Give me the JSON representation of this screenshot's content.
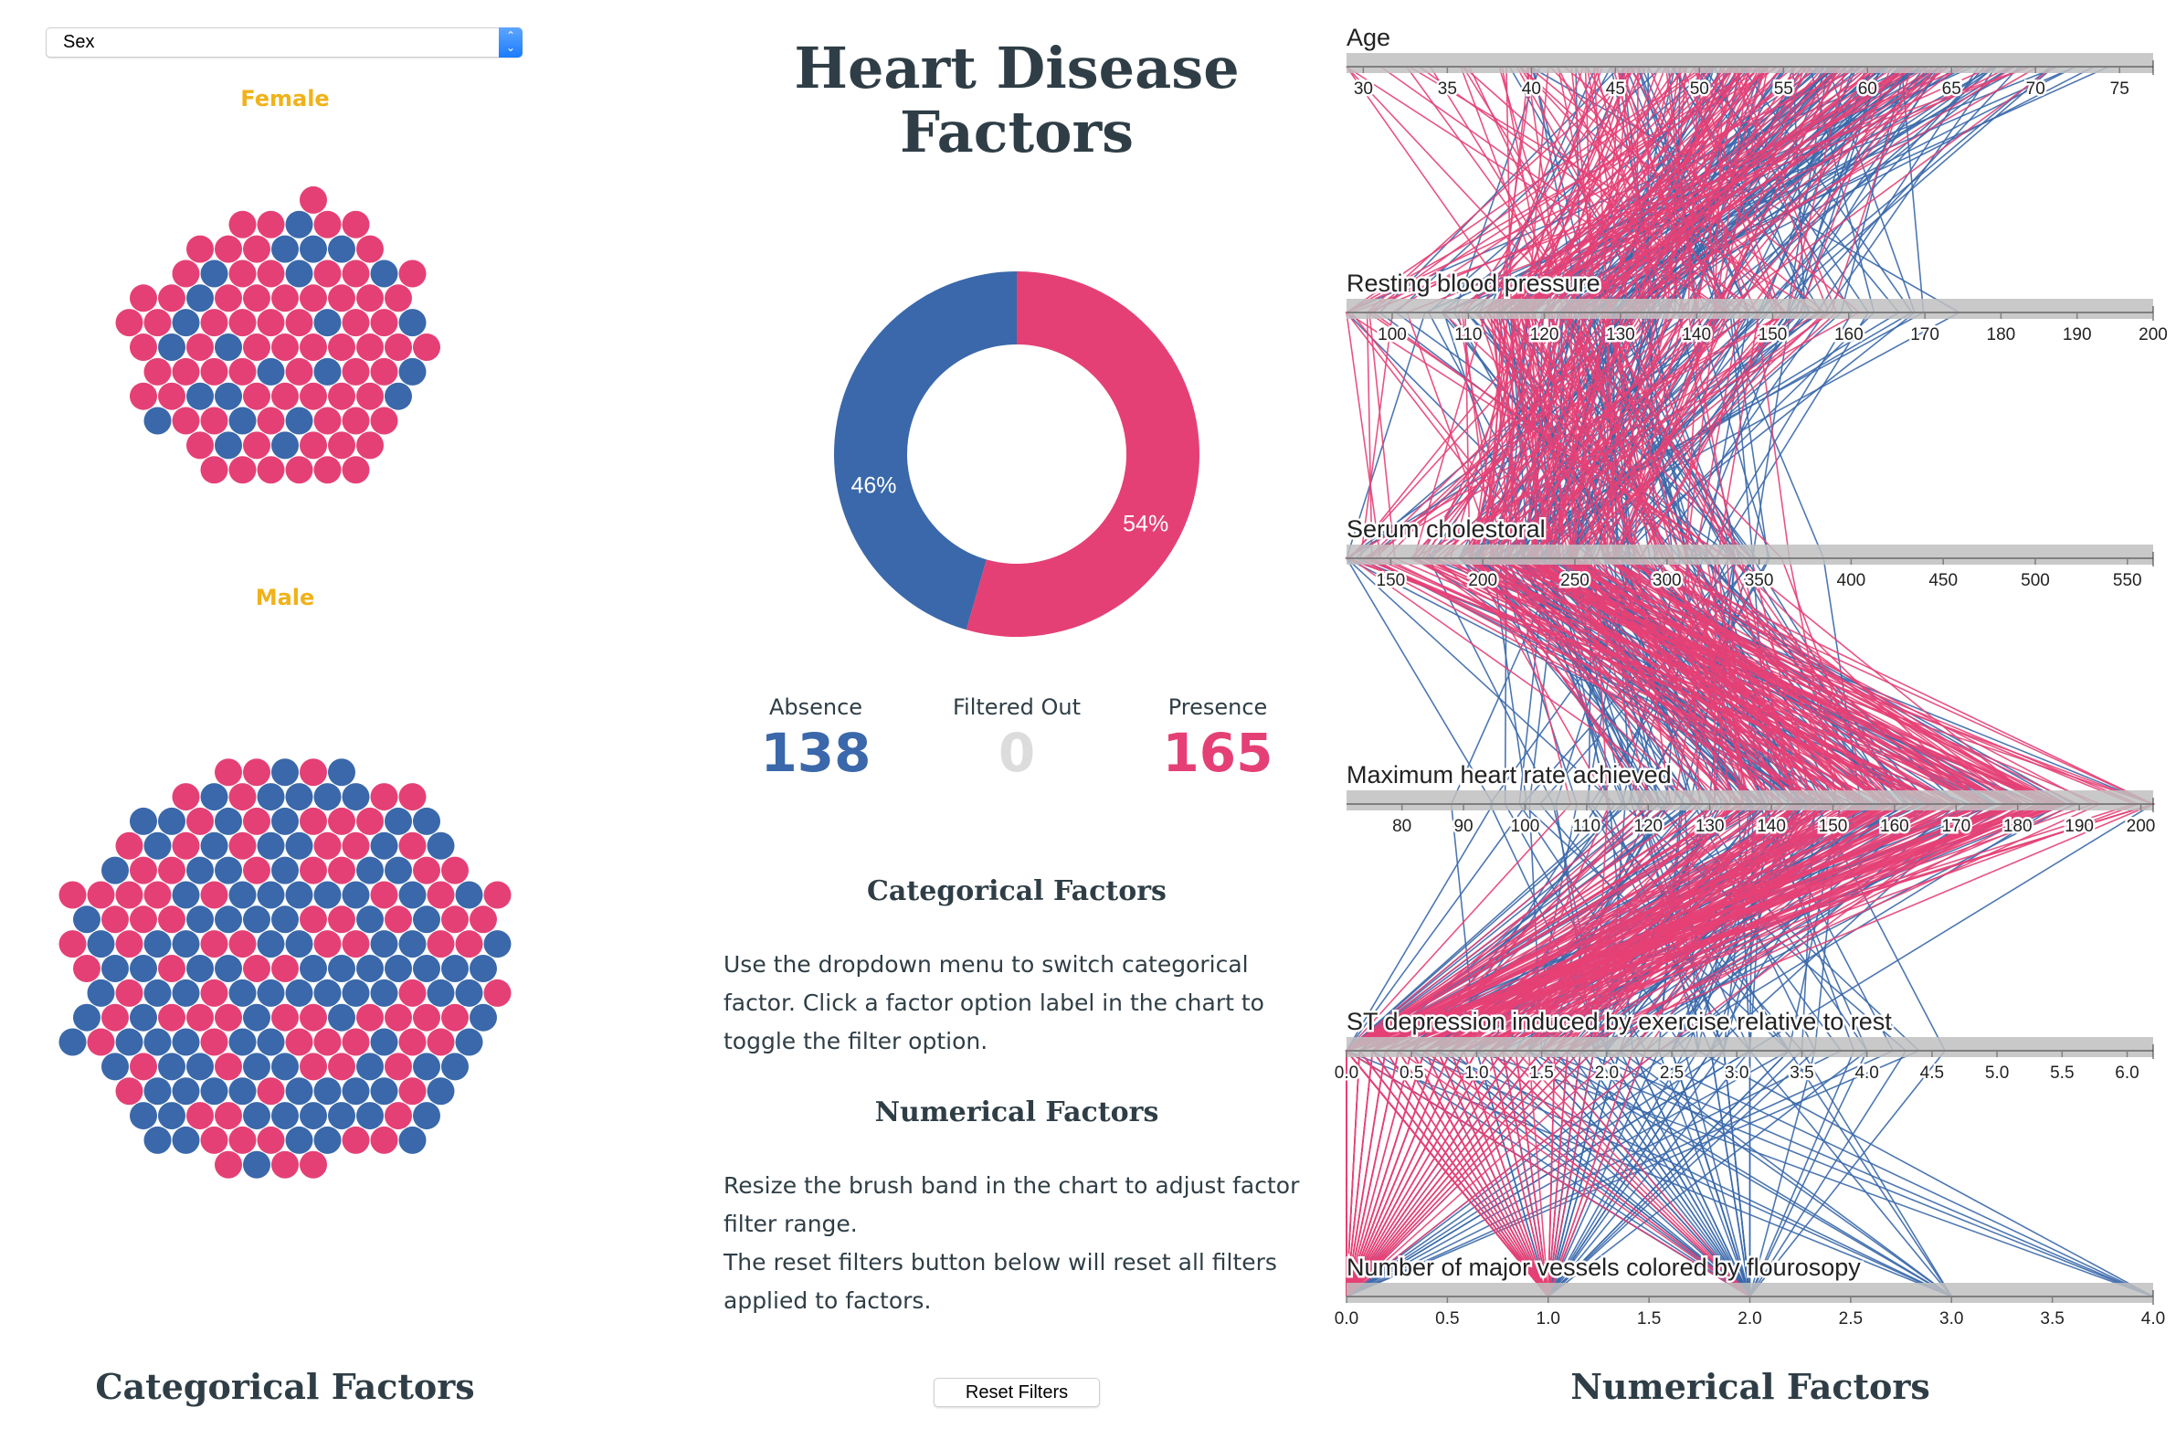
{
  "colors": {
    "absence": "#3a68aa",
    "presence": "#e54075",
    "filtered": "#dcdcdc",
    "category_label": "#f0b21a",
    "text": "#2f3e46",
    "axis_band": "#c0c0c0"
  },
  "dropdown": {
    "selected": "Sex",
    "icon": "updown-chevron-icon"
  },
  "title": {
    "line1": "Heart Disease",
    "line2": "Factors"
  },
  "categorical_chart": {
    "groups": [
      {
        "label": "Female",
        "absence": 24,
        "presence": 72
      },
      {
        "label": "Male",
        "absence": 114,
        "presence": 93
      }
    ]
  },
  "stats": {
    "absence": {
      "label": "Absence",
      "value": "138"
    },
    "filtered": {
      "label": "Filtered Out",
      "value": "0"
    },
    "presence": {
      "label": "Presence",
      "value": "165"
    }
  },
  "help": {
    "categorical_heading": "Categorical Factors",
    "categorical_lines": [
      "Use the dropdown menu to switch categorical",
      "factor. Click a factor option label in the chart to",
      "toggle the filter option."
    ],
    "numerical_heading": "Numerical Factors",
    "numerical_lines": [
      "Resize the brush band in the chart to adjust factor",
      "filter range.",
      "The reset filters button below will reset all filters",
      "applied to factors."
    ]
  },
  "footer": {
    "categorical_title": "Categorical Factors",
    "reset_label": "Reset Filters",
    "numerical_title": "Numerical Factors"
  },
  "chart_data": [
    {
      "type": "pie",
      "title": "",
      "categories": [
        "Absence",
        "Presence"
      ],
      "values": [
        138,
        165
      ],
      "labels": [
        "46%",
        "54%"
      ],
      "donut": true
    },
    {
      "type": "parallel-coordinates",
      "series": [
        {
          "name": "Absence",
          "count": 138
        },
        {
          "name": "Presence",
          "count": 165
        }
      ],
      "axes": [
        {
          "name": "Age",
          "range": [
            29,
            77
          ],
          "ticks": [
            "30",
            "35",
            "40",
            "45",
            "50",
            "55",
            "60",
            "65",
            "70",
            "75"
          ]
        },
        {
          "name": "Resting blood pressure",
          "range": [
            94,
            200
          ],
          "ticks": [
            "100",
            "110",
            "120",
            "130",
            "140",
            "150",
            "160",
            "170",
            "180",
            "190",
            "200"
          ]
        },
        {
          "name": "Serum cholestoral",
          "range": [
            126,
            564
          ],
          "ticks": [
            "150",
            "200",
            "250",
            "300",
            "350",
            "400",
            "450",
            "500",
            "550"
          ]
        },
        {
          "name": "Maximum heart rate achieved",
          "range": [
            71,
            202
          ],
          "ticks": [
            "80",
            "90",
            "100",
            "110",
            "120",
            "130",
            "140",
            "150",
            "160",
            "170",
            "180",
            "190",
            "200"
          ]
        },
        {
          "name": "ST depression induced by exercise relative to rest",
          "range": [
            0,
            6.2
          ],
          "ticks": [
            "0.0",
            "0.5",
            "1.0",
            "1.5",
            "2.0",
            "2.5",
            "3.0",
            "3.5",
            "4.0",
            "4.5",
            "5.0",
            "5.5",
            "6.0"
          ]
        },
        {
          "name": "Number of major vessels colored by flourosopy",
          "range": [
            0,
            4
          ],
          "ticks": [
            "0.0",
            "0.5",
            "1.0",
            "1.5",
            "2.0",
            "2.5",
            "3.0",
            "3.5",
            "4.0"
          ]
        }
      ]
    }
  ]
}
